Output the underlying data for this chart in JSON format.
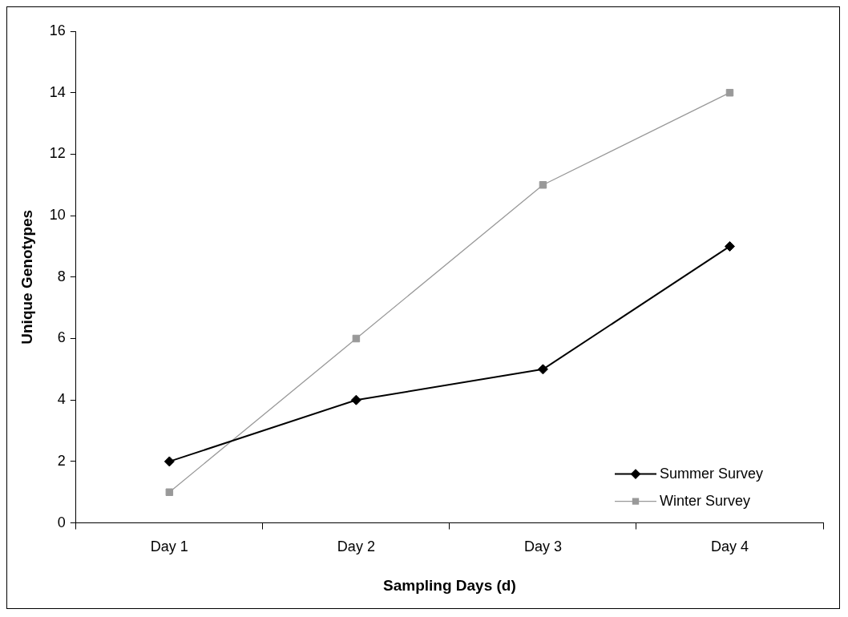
{
  "chart_data": {
    "type": "line",
    "xlabel": "Sampling Days (d)",
    "ylabel": "Unique Genotypes",
    "categories": [
      "Day 1",
      "Day 2",
      "Day 3",
      "Day 4"
    ],
    "series": [
      {
        "name": "Summer Survey",
        "color": "#000000",
        "marker": "diamond",
        "values": [
          2,
          4,
          5,
          9
        ]
      },
      {
        "name": "Winter Survey",
        "color": "#999999",
        "marker": "square",
        "values": [
          1,
          6,
          11,
          14
        ]
      }
    ],
    "ylim": [
      0,
      16
    ],
    "yticks": [
      0,
      2,
      4,
      6,
      8,
      10,
      12,
      14,
      16
    ],
    "grid": false,
    "legend": "bottom right",
    "line_style": "solid"
  }
}
